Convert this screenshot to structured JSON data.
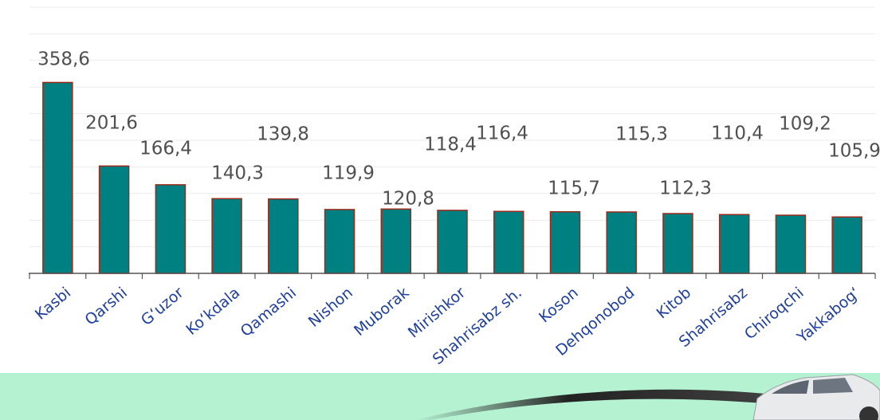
{
  "chart_data": {
    "type": "bar",
    "categories": [
      "Kasbi",
      "Qarshi",
      "G‘uzor",
      "Ko‘kdala",
      "Qamashi",
      "Nishon",
      "Muborak",
      "Mirishkor",
      "Shahrisabz sh.",
      "Koson",
      "Dehqonobod",
      "Kitob",
      "Shahrisabz",
      "Chiroqchi",
      "Yakkabog‘"
    ],
    "values": [
      358.6,
      201.6,
      166.4,
      140.3,
      139.8,
      119.9,
      120.8,
      118.4,
      116.4,
      115.7,
      115.3,
      112.3,
      110.4,
      109.2,
      105.9
    ],
    "value_labels": [
      "358,6",
      "201,6",
      "166,4",
      "140,3",
      "139,8",
      "119,9",
      "120,8",
      "118,4",
      "116,4",
      "115,7",
      "115,3",
      "112,3",
      "110,4",
      "109,2",
      "105,9"
    ],
    "color": "#008080",
    "edge_color": "#9b2a1a",
    "ylim": [
      0,
      500
    ],
    "yticks": [
      0,
      50,
      100,
      150,
      200,
      250,
      300,
      350,
      400,
      450,
      500
    ],
    "grid": true,
    "y_tick_labels": false
  }
}
